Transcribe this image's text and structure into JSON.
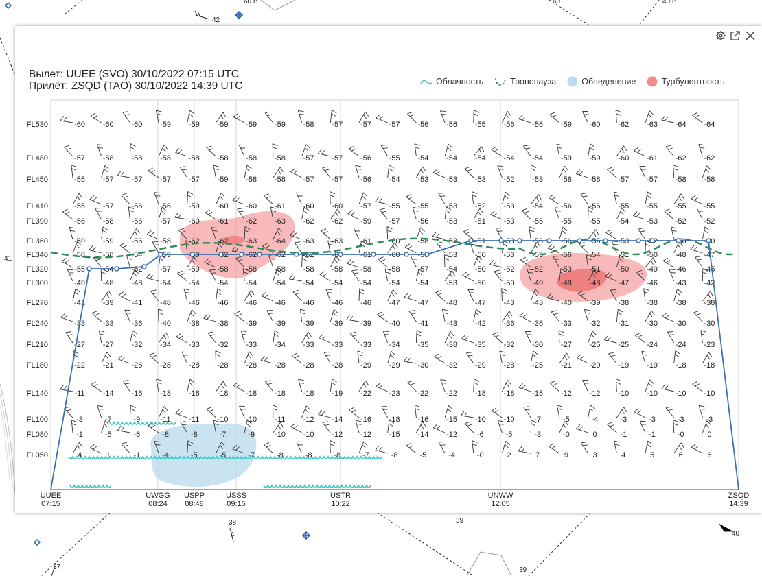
{
  "map": {
    "labels": [
      "42",
      "60 В",
      "40 В",
      "60",
      "41",
      "38",
      "39",
      "40",
      "37",
      "39"
    ]
  },
  "toolbar": {
    "settings_icon": "gear-icon",
    "open_icon": "external-link-icon",
    "close_icon": "close-icon"
  },
  "route": {
    "departure_label": "Вылет:",
    "departure_value": "UUEE (SVO)  30/10/2022 07:15 UTC",
    "arrival_label": "Прилёт:",
    "arrival_value": "ZSQD (TAO)  30/10/2022 14:39 UTC"
  },
  "legend": {
    "cloud": "Облачность",
    "tropopause": "Тропопауза",
    "icing": "Обледенение",
    "turbulence": "Турбулентность"
  },
  "colors": {
    "route": "#3a6fb0",
    "tropopause": "#2e8b57",
    "cloud": "#3ec9c9",
    "icing": "#bcdcee",
    "turbulence": "#f28b8b",
    "turbulence_strong": "#e85a5a"
  },
  "chart_data": {
    "type": "table",
    "y_levels": [
      "FL530",
      "FL480",
      "FL450",
      "FL410",
      "FL390",
      "FL360",
      "FL340",
      "FL320",
      "FL300",
      "FL270",
      "FL240",
      "FL210",
      "FL180",
      "FL140",
      "FL100",
      "FL080",
      "FL050"
    ],
    "x_points": [
      {
        "code": "UUEE",
        "time": "07:15"
      },
      {
        "code": "UWGG",
        "time": "08:24"
      },
      {
        "code": "USPP",
        "time": "08:48"
      },
      {
        "code": "USSS",
        "time": "09:15"
      },
      {
        "code": "USTR",
        "time": "10:22"
      },
      {
        "code": "UNWW",
        "time": "12:05"
      },
      {
        "code": "ZSQD",
        "time": "14:39"
      }
    ],
    "temperatures": [
      [
        "-60",
        "-60",
        "-60",
        "-59",
        "-59",
        "-59",
        "-59",
        "-59",
        "-58",
        "-57",
        "-57",
        "-57",
        "-56",
        "-56",
        "-55",
        "-56",
        "-56",
        "-59",
        "-60",
        "-62",
        "-63",
        "-64",
        "-64"
      ],
      [
        "-57",
        "-58",
        "-58",
        "-58",
        "-58",
        "-58",
        "-58",
        "-58",
        "-57",
        "-57",
        "-56",
        "-55",
        "-54",
        "-54",
        "-54",
        "-54",
        "-54",
        "-59",
        "-59",
        "-60",
        "-61",
        "-62",
        "-62"
      ],
      [
        "-55",
        "-57",
        "-57",
        "-57",
        "-57",
        "-59",
        "-58",
        "-58",
        "-57",
        "-57",
        "-56",
        "-54",
        "-53",
        "-53",
        "-53",
        "-52",
        "-53",
        "-58",
        "-58",
        "-57",
        "-57",
        "-58",
        "-58"
      ],
      [
        "-55",
        "-57",
        "-56",
        "-56",
        "-59",
        "-60",
        "-60",
        "-61",
        "-60",
        "-60",
        "-57",
        "-55",
        "-55",
        "-53",
        "-52",
        "-53",
        "-54",
        "-56",
        "-56",
        "-55",
        "-55",
        "-55",
        "-55"
      ],
      [
        "-56",
        "-58",
        "-56",
        "-57",
        "-60",
        "-61",
        "-62",
        "-63",
        "-62",
        "-62",
        "-59",
        "-57",
        "-56",
        "-53",
        "-51",
        "-53",
        "-55",
        "-55",
        "-55",
        "-54",
        "-53",
        "-52",
        "-52"
      ],
      [
        "-59",
        "-59",
        "-56",
        "-58",
        "-62",
        "-62",
        "-63",
        "-64",
        "-63",
        "-63",
        "-61",
        "-60",
        "-58",
        "-53",
        "-51",
        "-53",
        "-56",
        "-56",
        "-55",
        "-53",
        "-52",
        "-50",
        "-50"
      ],
      [
        "-58",
        "-58",
        "-54",
        "-59",
        "-59",
        "-62",
        "-62",
        "-62",
        "-62",
        "-60",
        "-61",
        "-60",
        "-58",
        "-53",
        "-50",
        "-53",
        "-55",
        "-56",
        "-54",
        "-51",
        "-50",
        "-48",
        "-47"
      ],
      [
        "-55",
        "-54",
        "-52",
        "-57",
        "-59",
        "-58",
        "-58",
        "-58",
        "-58",
        "-58",
        "-58",
        "-58",
        "-57",
        "-54",
        "-50",
        "-52",
        "-52",
        "-53",
        "-51",
        "-50",
        "-49",
        "-46",
        "-45"
      ],
      [
        "-49",
        "-48",
        "-48",
        "-54",
        "-54",
        "-54",
        "-54",
        "-54",
        "-54",
        "-54",
        "-54",
        "-54",
        "-54",
        "-53",
        "-50",
        "-50",
        "-49",
        "-48",
        "-48",
        "-47",
        "-46",
        "-43",
        "-42"
      ],
      [
        "-41",
        "-39",
        "-41",
        "-48",
        "-46",
        "-46",
        "-46",
        "-46",
        "-46",
        "-46",
        "-46",
        "-47",
        "-47",
        "-48",
        "-47",
        "-43",
        "-43",
        "-40",
        "-39",
        "-38",
        "-38",
        "-38",
        "-38"
      ],
      [
        "-33",
        "-33",
        "-36",
        "-40",
        "-38",
        "-38",
        "-39",
        "-39",
        "-39",
        "-39",
        "-39",
        "-40",
        "-41",
        "-43",
        "-42",
        "-36",
        "-36",
        "-33",
        "-32",
        "-31",
        "-30",
        "-30",
        "-30"
      ],
      [
        "-27",
        "-27",
        "-32",
        "-34",
        "-33",
        "-32",
        "-33",
        "-34",
        "-33",
        "-33",
        "-33",
        "-34",
        "-35",
        "-38",
        "-35",
        "-32",
        "-30",
        "-27",
        "-25",
        "-25",
        "-24",
        "-24",
        "-23"
      ],
      [
        "-22",
        "-21",
        "-26",
        "-28",
        "-28",
        "-28",
        "-28",
        "-28",
        "-28",
        "-28",
        "-29",
        "-29",
        "-30",
        "-32",
        "-29",
        "-28",
        "-25",
        "-21",
        "-20",
        "-19",
        "-19",
        "-18",
        "-18"
      ],
      [
        "-11",
        "-14",
        "-16",
        "-18",
        "-18",
        "-18",
        "-18",
        "-18",
        "-18",
        "-19",
        "-22",
        "-23",
        "-22",
        "-22",
        "-18",
        "-18",
        "-15",
        "-12",
        "-12",
        "-10",
        "-10",
        "-10",
        "-10"
      ],
      [
        "-3",
        "-7",
        "-9",
        "-11",
        "-11",
        "-10",
        "-10",
        "-11",
        "-12",
        "-14",
        "-16",
        "-18",
        "-16",
        "-15",
        "-10",
        "-10",
        "-7",
        "-5",
        "-4",
        "-3",
        "-3",
        "-3",
        "-3"
      ],
      [
        "-1",
        "-5",
        "-6",
        "-8",
        "-8",
        "-7",
        "-9",
        "-10",
        "-10",
        "-12",
        "-12",
        "-15",
        "-14",
        "-12",
        "-6",
        "-5",
        "-3",
        "-0",
        "0",
        "-1",
        "-1",
        "-0",
        "0"
      ],
      [
        "4",
        "1",
        "-1",
        "-4",
        "-5",
        "-5",
        "-7",
        "-8",
        "-8",
        "-8",
        "-7",
        "-8",
        "-5",
        "-4",
        "-0",
        "2",
        "7",
        "9",
        "3",
        "4",
        "5",
        "6",
        "6"
      ]
    ]
  }
}
